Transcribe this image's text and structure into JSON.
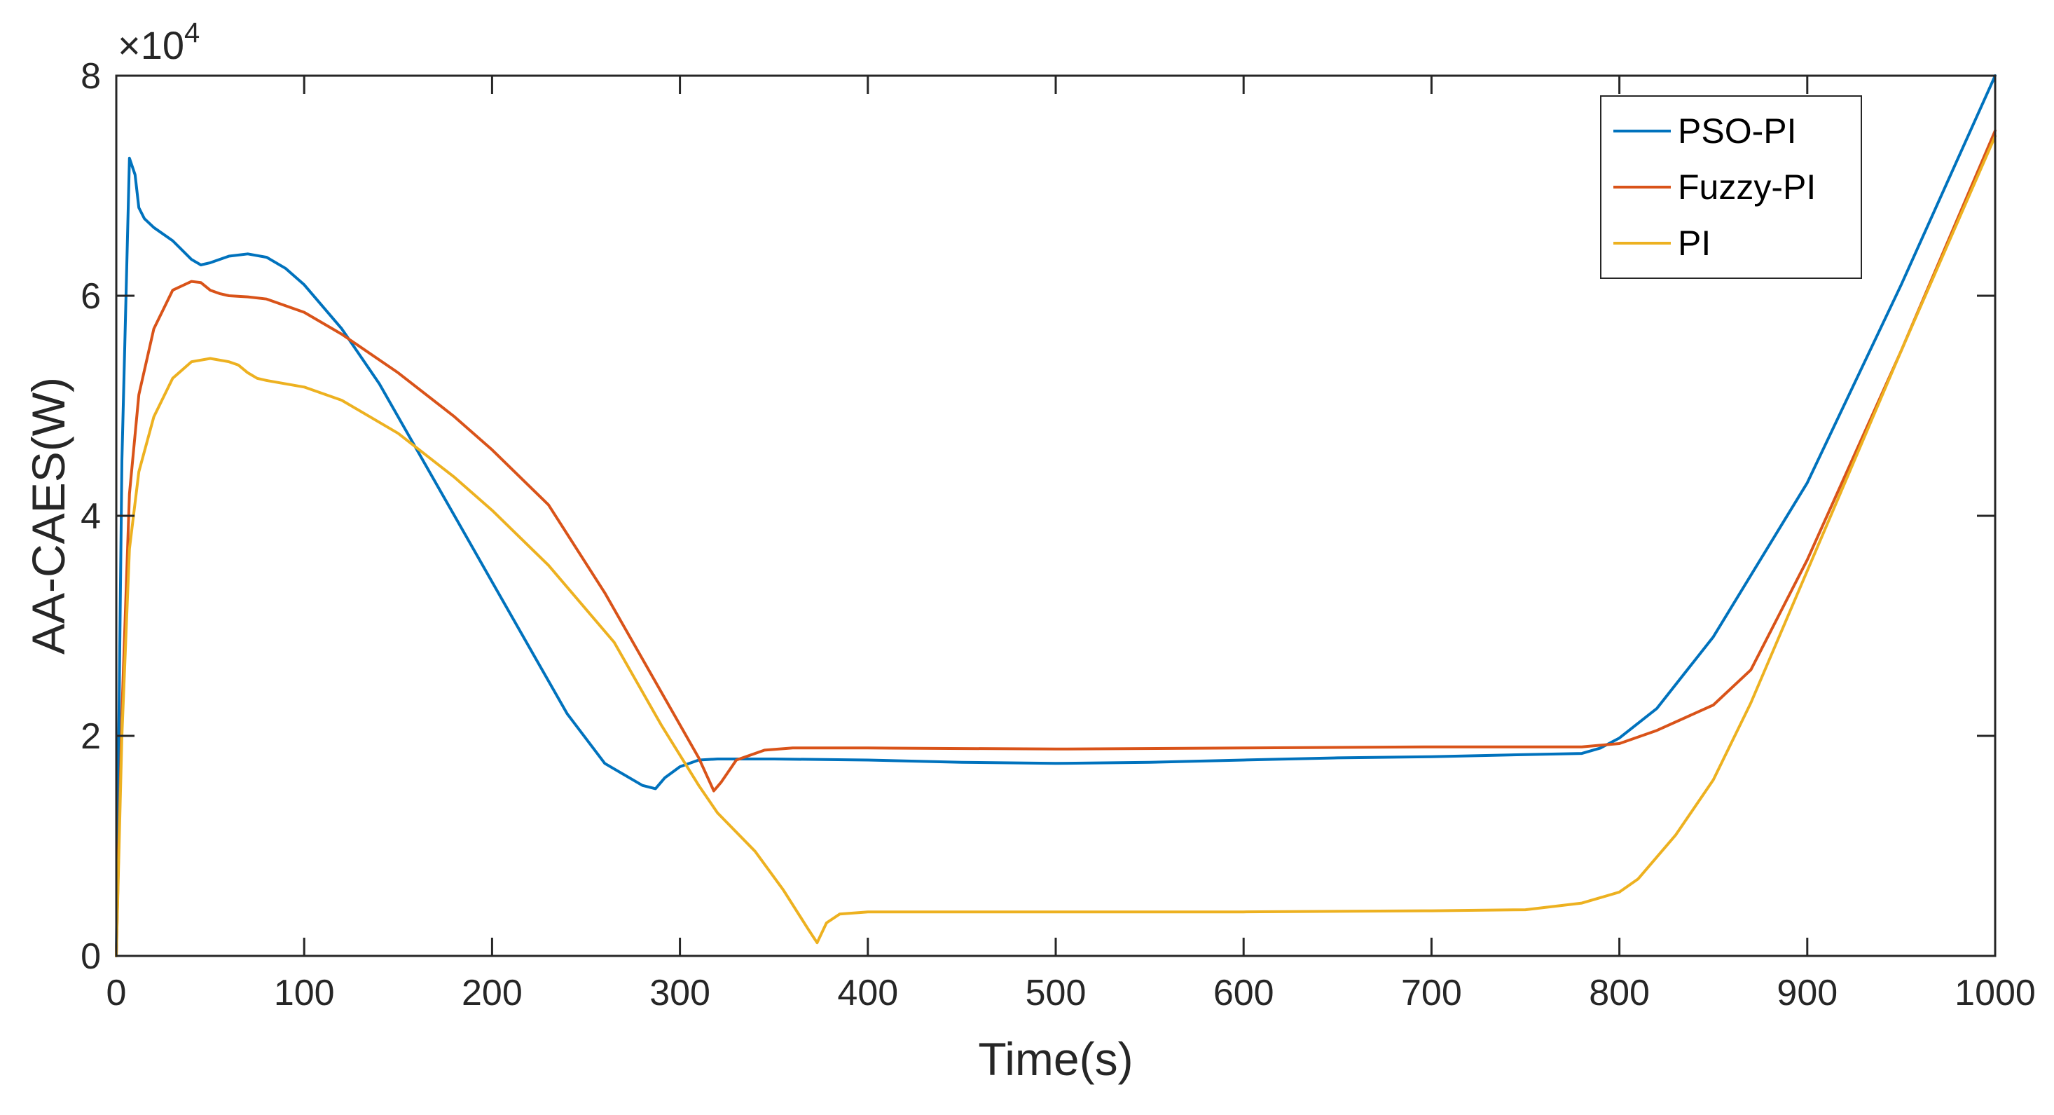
{
  "chart_data": {
    "type": "line",
    "title": "",
    "xlabel": "Time(s)",
    "ylabel": "AA-CAES(W)",
    "xlim": [
      0,
      1000
    ],
    "ylim": [
      0,
      80000
    ],
    "xticks": [
      0,
      100,
      200,
      300,
      400,
      500,
      600,
      700,
      800,
      900,
      1000
    ],
    "yticks": [
      0,
      2,
      4,
      6,
      8
    ],
    "y_multiplier_base": "×10",
    "y_multiplier_exp": "4",
    "y_scale_factor": 10000,
    "grid": false,
    "legend_position": "top-right",
    "series": [
      {
        "name": "PSO-PI",
        "color": "#0072BD",
        "x": [
          0,
          3,
          7,
          10,
          12,
          15,
          20,
          30,
          40,
          45,
          50,
          60,
          70,
          80,
          90,
          100,
          120,
          140,
          160,
          180,
          200,
          220,
          240,
          260,
          280,
          287,
          292,
          300,
          310,
          320,
          350,
          400,
          450,
          500,
          550,
          600,
          650,
          700,
          750,
          780,
          790,
          800,
          820,
          850,
          900,
          950,
          1000
        ],
        "y": [
          0,
          45000,
          72500,
          71000,
          68000,
          67000,
          66200,
          65000,
          63300,
          62800,
          63000,
          63600,
          63800,
          63500,
          62500,
          61000,
          57000,
          52000,
          46000,
          40000,
          34000,
          28000,
          22000,
          17500,
          15500,
          15200,
          16200,
          17200,
          17800,
          17900,
          17900,
          17800,
          17600,
          17500,
          17600,
          17800,
          18000,
          18100,
          18300,
          18400,
          18900,
          19800,
          22500,
          29000,
          43000,
          61000,
          80000
        ]
      },
      {
        "name": "Fuzzy-PI",
        "color": "#D95319",
        "x": [
          0,
          3,
          7,
          12,
          20,
          30,
          40,
          45,
          50,
          55,
          60,
          70,
          80,
          100,
          120,
          150,
          180,
          200,
          230,
          260,
          290,
          310,
          318,
          322,
          330,
          345,
          360,
          400,
          500,
          600,
          700,
          780,
          800,
          820,
          850,
          870,
          900,
          950,
          1000
        ],
        "y": [
          0,
          22000,
          42000,
          51000,
          57000,
          60500,
          61300,
          61200,
          60500,
          60200,
          60000,
          59900,
          59700,
          58500,
          56500,
          53000,
          49000,
          46000,
          41000,
          33000,
          24000,
          18000,
          15000,
          15800,
          17800,
          18700,
          18900,
          18900,
          18800,
          18900,
          19000,
          19000,
          19300,
          20500,
          22800,
          26000,
          36000,
          55000,
          75000
        ]
      },
      {
        "name": "PI",
        "color": "#EDB120",
        "x": [
          0,
          3,
          7,
          12,
          20,
          30,
          40,
          50,
          60,
          65,
          70,
          75,
          80,
          100,
          120,
          150,
          180,
          200,
          230,
          265,
          290,
          310,
          320,
          340,
          355,
          368,
          373,
          378,
          385,
          400,
          500,
          600,
          700,
          750,
          780,
          800,
          810,
          830,
          850,
          870,
          900,
          950,
          1000
        ],
        "y": [
          0,
          20000,
          37000,
          44000,
          49000,
          52500,
          54000,
          54300,
          54000,
          53700,
          53000,
          52500,
          52300,
          51700,
          50500,
          47500,
          43500,
          40500,
          35500,
          28500,
          21000,
          15500,
          13000,
          9500,
          6000,
          2500,
          1200,
          3000,
          3800,
          4000,
          4000,
          4000,
          4100,
          4200,
          4800,
          5800,
          7000,
          11000,
          16000,
          23000,
          35000,
          55000,
          74500
        ]
      }
    ]
  }
}
